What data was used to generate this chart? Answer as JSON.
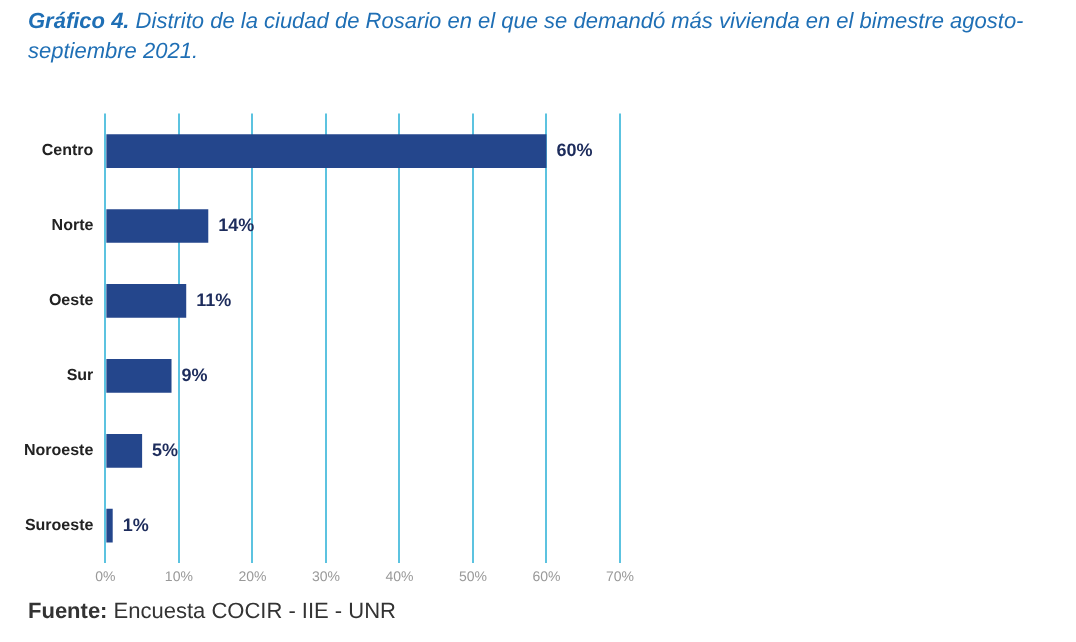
{
  "chart_data": {
    "type": "bar",
    "orientation": "horizontal",
    "title": "Gráfico 4. Distrito de la ciudad de Rosario en el que se demandó más vivienda en el bimestre agosto-septiembre 2021.",
    "categories": [
      "Centro",
      "Norte",
      "Oeste",
      "Sur",
      "Noroeste",
      "Suroeste"
    ],
    "values": [
      60,
      14,
      11,
      9,
      5,
      1
    ],
    "value_labels": [
      "60%",
      "14%",
      "11%",
      "9%",
      "5%",
      "1%"
    ],
    "color": "#24468c",
    "xlim": [
      0,
      70
    ],
    "xticks": [
      {
        "value": 0,
        "label": "0%"
      },
      {
        "value": 10,
        "label": "10%"
      },
      {
        "value": 20,
        "label": "20%"
      },
      {
        "value": 30,
        "label": "30%"
      },
      {
        "value": 40,
        "label": "40%"
      },
      {
        "value": 50,
        "label": "50%"
      },
      {
        "value": 60,
        "label": "60%"
      },
      {
        "value": 70,
        "label": "70%"
      }
    ],
    "grid": "x",
    "legend": false,
    "annotations": [
      "Fuente: Encuesta COCIR - IIE - UNR"
    ]
  }
}
